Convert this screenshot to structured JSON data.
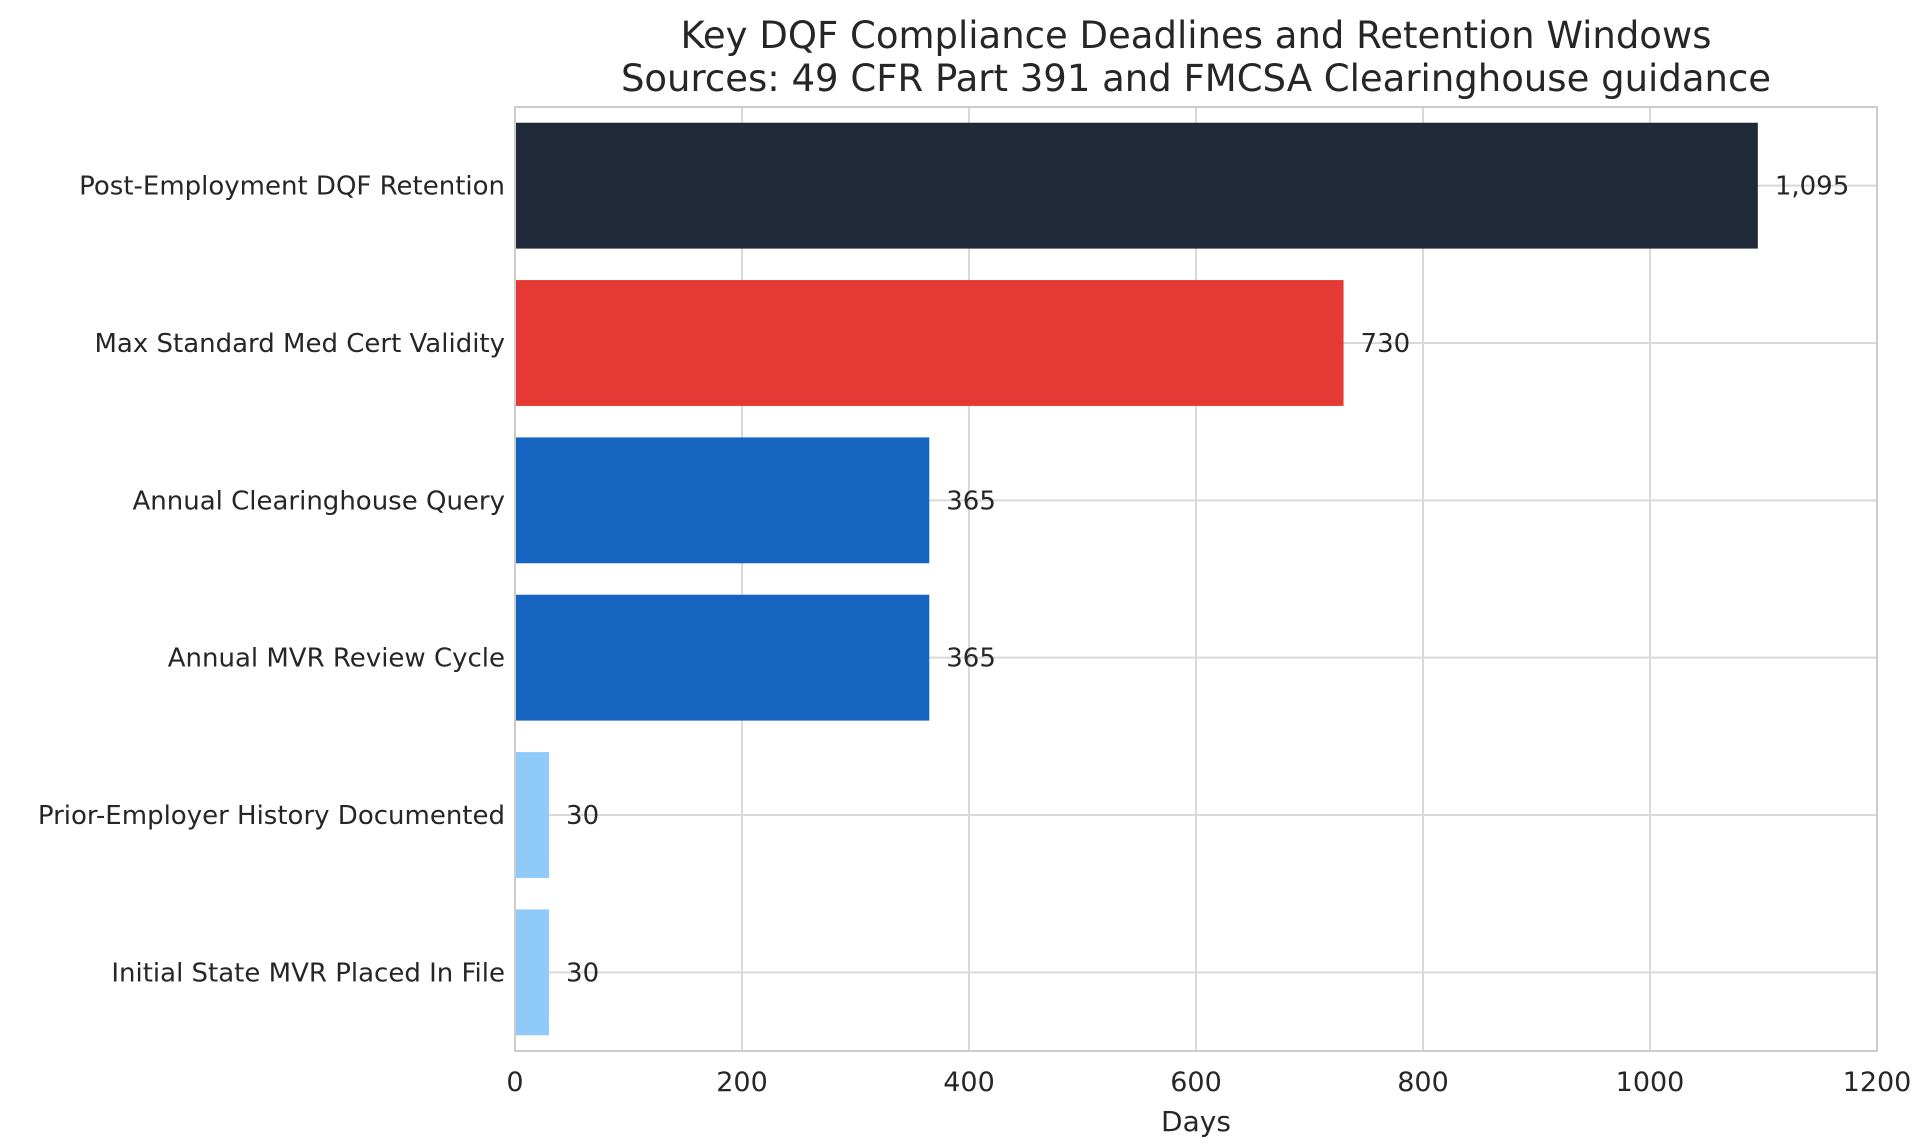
{
  "chart_data": {
    "type": "bar",
    "orientation": "horizontal",
    "title": "Key DQF Compliance Deadlines and Retention Windows",
    "subtitle": "Sources: 49 CFR Part 391 and FMCSA Clearinghouse guidance",
    "xlabel": "Days",
    "ylabel": "",
    "xlim": [
      0,
      1200
    ],
    "xticks": [
      0,
      200,
      400,
      600,
      800,
      1000,
      1200
    ],
    "grid": true,
    "legend": "none",
    "categories": [
      "Post-Employment DQF Retention",
      "Max Standard Med Cert Validity",
      "Annual Clearinghouse Query",
      "Annual MVR Review Cycle",
      "Prior-Employer History Documented",
      "Initial State MVR Placed In File"
    ],
    "values": [
      1095,
      730,
      365,
      365,
      30,
      30
    ],
    "value_labels": [
      "1,095",
      "730",
      "365",
      "365",
      "30",
      "30"
    ],
    "colors": [
      "#1f2937",
      "#e53935",
      "#1565c0",
      "#1565c0",
      "#90caf9",
      "#90caf9"
    ]
  }
}
